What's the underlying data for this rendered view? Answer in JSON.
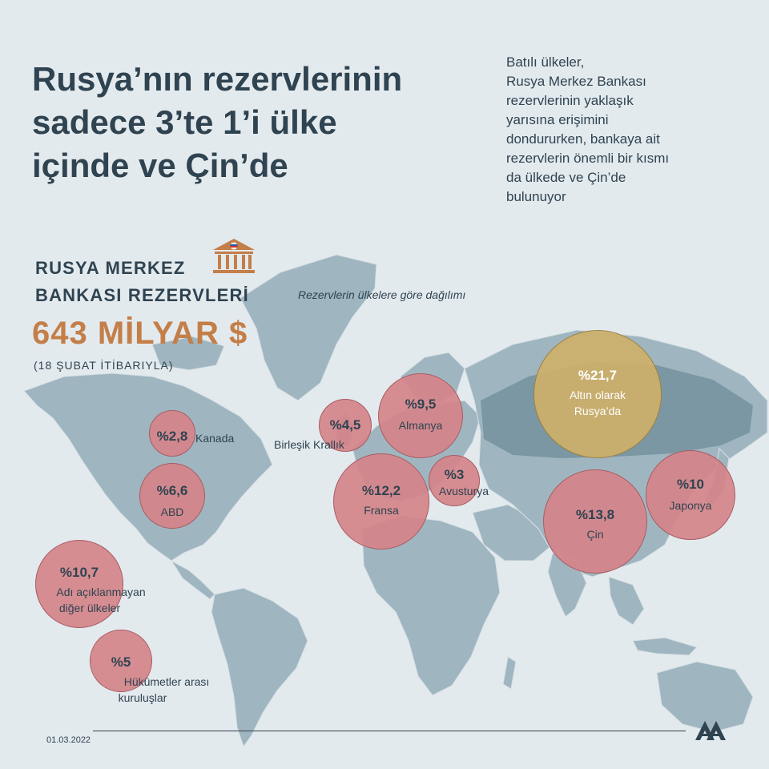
{
  "headline": {
    "line1": "Rusya’nın rezervlerinin",
    "line2": "sadece 3’te 1’i ülke",
    "line3": "içinde ve Çin’de"
  },
  "intro": {
    "line1": "Batılı ülkeler,",
    "line2": "Rusya Merkez Bankası",
    "line3": "rezervlerinin yaklaşık",
    "line4": "yarısına erişimini",
    "line5": "dondururken, bankaya ait",
    "line6": "rezervlerin önemli bir kısmı",
    "line7": "da ülkede ve Çin’de",
    "line8": "bulunuyor"
  },
  "bank": {
    "title_line1": "RUSYA MERKEZ",
    "title_line2": "BANKASI REZERVLERİ",
    "subtitle": "Rezervlerin ülkelere göre dağılımı",
    "total": "643 MİLYAR $",
    "as_of": "(18 ŞUBAT İTİBARIYLA)"
  },
  "reserves": [
    {
      "key": "canada",
      "pct": "%2,8",
      "label": "Kanada",
      "value": 2.8
    },
    {
      "key": "usa",
      "pct": "%6,6",
      "label": "ABD",
      "value": 6.6
    },
    {
      "key": "undisclosed",
      "pct": "%10,7",
      "label_line1": "Adı açıklanmayan",
      "label_line2": "diğer ülkeler",
      "value": 10.7
    },
    {
      "key": "intergov",
      "pct": "%5",
      "label_line1": "Hükümetler arası",
      "label_line2": "kuruluşlar",
      "value": 5
    },
    {
      "key": "uk",
      "pct": "%4,5",
      "label": "Birleşik Krallık",
      "value": 4.5
    },
    {
      "key": "germany",
      "pct": "%9,5",
      "label": "Almanya",
      "value": 9.5
    },
    {
      "key": "france",
      "pct": "%12,2",
      "label": "Fransa",
      "value": 12.2
    },
    {
      "key": "austria",
      "pct": "%3",
      "label": "Avusturya",
      "value": 3
    },
    {
      "key": "russia_gold",
      "pct": "%21,7",
      "label_line1": "Altın olarak",
      "label_line2": "Rusya’da",
      "value": 21.7
    },
    {
      "key": "china",
      "pct": "%13,8",
      "label": "Çin",
      "value": 13.8
    },
    {
      "key": "japan",
      "pct": "%10",
      "label": "Japonya",
      "value": 10
    }
  ],
  "footer": {
    "date": "01.03.2022"
  },
  "colors": {
    "background": "#e3eaee",
    "land": "#9fb6c1",
    "land_dark": "#6f8c98",
    "bubble": "#d4848a",
    "bubble_gold": "#cdb06a",
    "headline": "#2f4350",
    "accent": "#c47e48"
  },
  "icons": {
    "bank": "bank-building-icon",
    "logo": "aa-logo-icon"
  }
}
